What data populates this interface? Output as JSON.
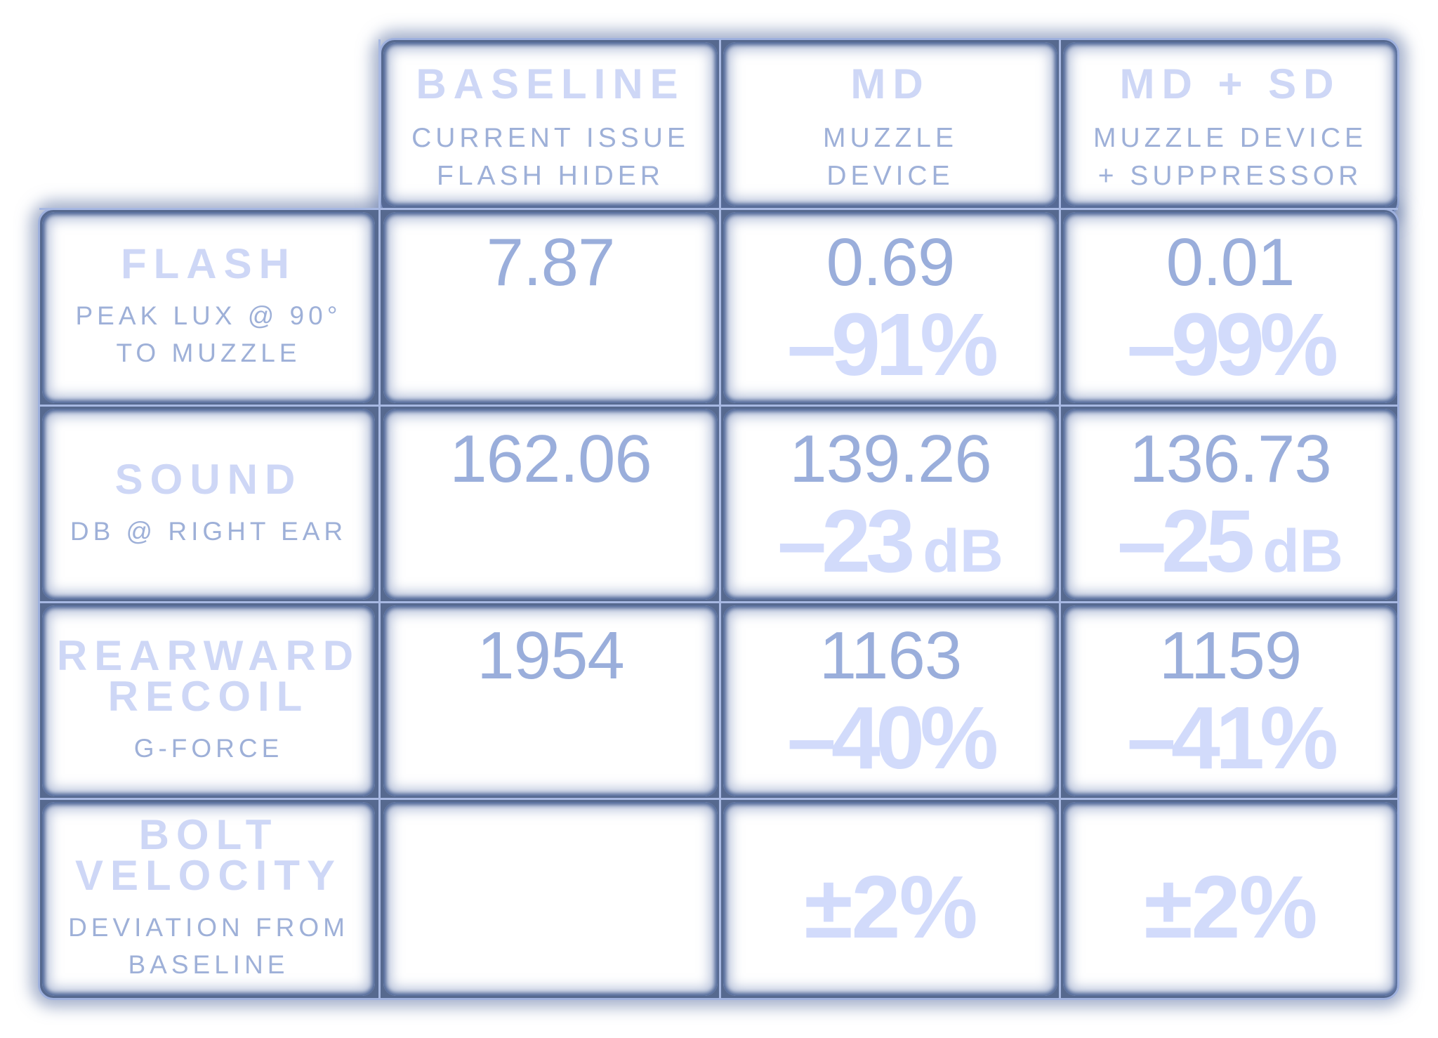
{
  "chart_data": {
    "type": "table",
    "columns": [
      {
        "title": "BASELINE",
        "subtitle": "CURRENT ISSUE\nFLASH HIDER"
      },
      {
        "title": "MD",
        "subtitle": "MUZZLE\nDEVICE"
      },
      {
        "title": "MD + SD",
        "subtitle": "MUZZLE DEVICE\n+ SUPPRESSOR"
      }
    ],
    "rows": [
      {
        "title": "FLASH",
        "subtitle": "PEAK LUX @ 90°\nTO MUZZLE",
        "values": [
          "7.87",
          "0.69",
          "0.01"
        ],
        "changes": [
          "",
          "–91%",
          "–99%"
        ],
        "change_units": [
          "",
          "",
          ""
        ]
      },
      {
        "title": "SOUND",
        "subtitle": "DB @ RIGHT EAR",
        "values": [
          "162.06",
          "139.26",
          "136.73"
        ],
        "changes": [
          "",
          "–23",
          "–25"
        ],
        "change_units": [
          "",
          "dB",
          "dB"
        ]
      },
      {
        "title": "REARWARD\nRECOIL",
        "subtitle": "G-FORCE",
        "values": [
          "1954",
          "1163",
          "1159"
        ],
        "changes": [
          "",
          "–40%",
          "–41%"
        ],
        "change_units": [
          "",
          "",
          ""
        ]
      },
      {
        "title": "BOLT\nVELOCITY",
        "subtitle": "DEVIATION FROM\nBASELINE",
        "values": [
          "",
          "",
          ""
        ],
        "changes": [
          "",
          "±2%",
          "±2%"
        ],
        "change_units": [
          "",
          "",
          ""
        ]
      }
    ],
    "colors": {
      "frame": "#56698f",
      "gridline": "#a7b8e2",
      "title_text": "#ced7f6",
      "subtitle_text": "#9eb0d8",
      "value_text": "#9aaedb",
      "change_text": "#d2dbfb"
    }
  }
}
